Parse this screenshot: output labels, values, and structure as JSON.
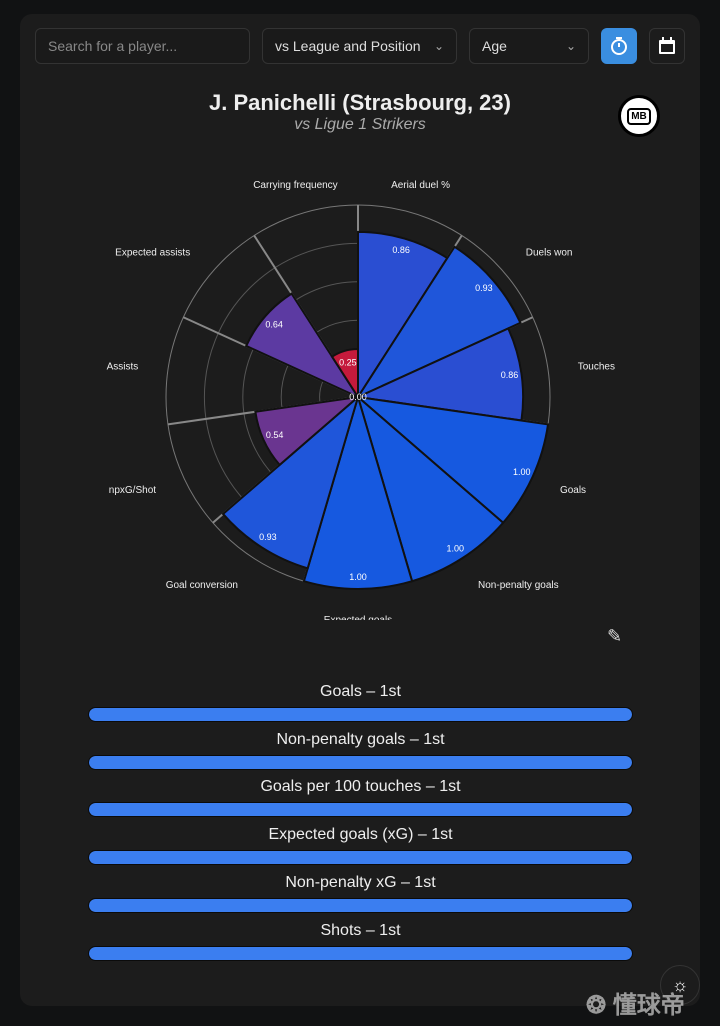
{
  "controls": {
    "search_placeholder": "Search for a player...",
    "comparison": "vs League and Position",
    "age": "Age"
  },
  "header": {
    "title": "J. Panichelli (Strasbourg, 23)",
    "subtitle": "vs Ligue 1 Strikers",
    "logo_text": "MB"
  },
  "chart_data": {
    "type": "polar-bar",
    "rmax": 1.0,
    "grid_rings": [
      0.2,
      0.4,
      0.6,
      0.8,
      1.0
    ],
    "categories": [
      "Aerial duel %",
      "Duels won",
      "Touches",
      "Goals",
      "Non-penalty goals",
      "Expected goals",
      "Goal conversion",
      "npxG/Shot",
      "Assists",
      "Expected assists",
      "Carrying frequency"
    ],
    "values": [
      0.86,
      0.93,
      0.86,
      1.0,
      1.0,
      1.0,
      0.93,
      0.54,
      0.0,
      0.64,
      0.25
    ],
    "colors": [
      "#2a4ed2",
      "#1f56da",
      "#2a4ed2",
      "#1659e0",
      "#1659e0",
      "#1659e0",
      "#1f56da",
      "#6a3590",
      "#c0173c",
      "#5c3aa2",
      "#c41a3c"
    ]
  },
  "rankings": [
    {
      "label": "Goals – 1st",
      "value": 1.0
    },
    {
      "label": "Non-penalty goals – 1st",
      "value": 1.0
    },
    {
      "label": "Goals per 100 touches – 1st",
      "value": 1.0
    },
    {
      "label": "Expected goals (xG) – 1st",
      "value": 1.0
    },
    {
      "label": "Non-penalty xG – 1st",
      "value": 1.0
    },
    {
      "label": "Shots – 1st",
      "value": 1.0
    }
  ],
  "watermark": "懂球帝"
}
